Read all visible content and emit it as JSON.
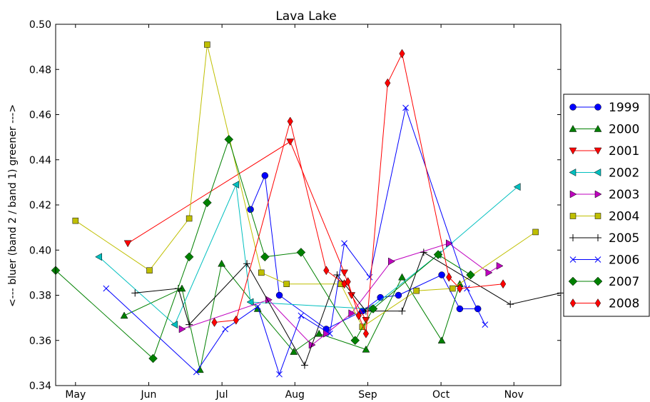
{
  "chart_data": {
    "type": "line",
    "title": "Lava Lake",
    "xlabel": "",
    "ylabel": "<--- bluer   (band 2 / band 1)   greener --->",
    "ylim": [
      0.34,
      0.5
    ],
    "yticks": [
      "0.34",
      "0.36",
      "0.38",
      "0.40",
      "0.42",
      "0.44",
      "0.46",
      "0.48",
      "0.50"
    ],
    "x_domain": [
      0,
      14.0
    ],
    "xticks": [
      {
        "label": "May",
        "x": 0.55
      },
      {
        "label": "Jun",
        "x": 2.58
      },
      {
        "label": "Jul",
        "x": 4.61
      },
      {
        "label": "Aug",
        "x": 6.63
      },
      {
        "label": "Sep",
        "x": 8.65
      },
      {
        "label": "Oct",
        "x": 10.68
      },
      {
        "label": "Nov",
        "x": 12.7
      }
    ],
    "grid": false,
    "legend_position": "right, outside plot",
    "series": [
      {
        "name": "1999",
        "color": "#0000ff",
        "marker": "circle",
        "x": [
          5.4,
          5.8,
          6.2,
          7.5,
          8.5,
          9.0,
          9.5,
          10.7,
          11.2,
          11.7
        ],
        "y": [
          0.418,
          0.433,
          0.38,
          0.365,
          0.373,
          0.379,
          0.38,
          0.389,
          0.374,
          0.374
        ]
      },
      {
        "name": "2000",
        "color": "#008000",
        "marker": "triangle-up",
        "x": [
          1.9,
          3.5,
          4.0,
          4.6,
          5.6,
          6.6,
          7.3,
          8.6,
          9.6,
          10.7,
          11.2
        ],
        "y": [
          0.371,
          0.383,
          0.347,
          0.394,
          0.374,
          0.355,
          0.363,
          0.356,
          0.388,
          0.36,
          0.385
        ]
      },
      {
        "name": "2001",
        "color": "#ff0000",
        "marker": "triangle-down",
        "x": [
          2.0,
          6.5,
          8.0,
          8.2,
          8.6
        ],
        "y": [
          0.403,
          0.448,
          0.39,
          0.38,
          0.369
        ]
      },
      {
        "name": "2002",
        "color": "#00bfbf",
        "marker": "triangle-left",
        "x": [
          1.2,
          3.3,
          5.0,
          5.4,
          8.7,
          10.6,
          12.8
        ],
        "y": [
          0.397,
          0.367,
          0.429,
          0.377,
          0.374,
          0.398,
          0.428
        ]
      },
      {
        "name": "2003",
        "color": "#bf00bf",
        "marker": "triangle-right",
        "x": [
          3.5,
          5.9,
          7.1,
          7.5,
          8.2,
          9.3,
          10.9,
          12.0,
          12.3
        ],
        "y": [
          0.365,
          0.378,
          0.358,
          0.363,
          0.372,
          0.395,
          0.403,
          0.39,
          0.393
        ]
      },
      {
        "name": "2004",
        "color": "#bfbf00",
        "marker": "square",
        "x": [
          0.55,
          2.6,
          3.7,
          4.2,
          5.7,
          6.4,
          7.9,
          8.5,
          10.0,
          11.0,
          13.3
        ],
        "y": [
          0.413,
          0.391,
          0.414,
          0.491,
          0.39,
          0.385,
          0.385,
          0.366,
          0.382,
          0.383,
          0.408
        ]
      },
      {
        "name": "2005",
        "color": "#000000",
        "marker": "plus",
        "x": [
          2.2,
          3.4,
          3.7,
          5.3,
          6.9,
          7.8,
          8.6,
          9.6,
          10.2,
          12.6,
          14.0
        ],
        "y": [
          0.381,
          0.383,
          0.367,
          0.394,
          0.349,
          0.389,
          0.373,
          0.373,
          0.399,
          0.376,
          0.381
        ]
      },
      {
        "name": "2006",
        "color": "#0000ff",
        "marker": "x",
        "x": [
          1.4,
          3.9,
          4.7,
          5.6,
          6.2,
          6.8,
          7.6,
          8.0,
          8.7,
          9.7,
          11.4,
          11.9
        ],
        "y": [
          0.383,
          0.346,
          0.365,
          0.375,
          0.345,
          0.371,
          0.363,
          0.403,
          0.388,
          0.463,
          0.383,
          0.367
        ]
      },
      {
        "name": "2007",
        "color": "#008000",
        "marker": "diamond",
        "x": [
          0.0,
          2.7,
          3.7,
          4.2,
          4.8,
          5.8,
          6.8,
          8.3,
          8.8,
          10.6,
          11.5
        ],
        "y": [
          0.391,
          0.352,
          0.397,
          0.421,
          0.449,
          0.397,
          0.399,
          0.36,
          0.374,
          0.398,
          0.389
        ]
      },
      {
        "name": "2008",
        "color": "#ff0000",
        "marker": "diamond-thin",
        "x": [
          4.4,
          5.0,
          6.5,
          7.5,
          8.0,
          8.1,
          8.4,
          8.6,
          9.2,
          9.6,
          10.9,
          11.2,
          12.4
        ],
        "y": [
          0.368,
          0.369,
          0.457,
          0.391,
          0.385,
          0.386,
          0.371,
          0.363,
          0.474,
          0.487,
          0.388,
          0.383,
          0.385
        ]
      }
    ]
  }
}
